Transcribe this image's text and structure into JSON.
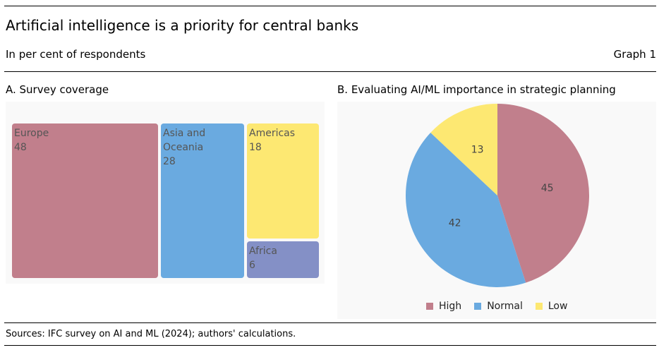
{
  "header": {
    "title": "Artificial intelligence is a priority for central banks",
    "subtitle": "In per cent of respondents",
    "graph_number": "Graph 1"
  },
  "footer": {
    "source": "Sources: IFC survey on AI and ML (2024); authors' calculations."
  },
  "chart_data": [
    {
      "type": "treemap",
      "title": "A. Survey coverage",
      "categories": [
        "Europe",
        "Asia and Oceania",
        "Americas",
        "Africa"
      ],
      "values": [
        48,
        28,
        18,
        6
      ],
      "colors": [
        "#c17f8c",
        "#6aaae0",
        "#fde872",
        "#8490c6"
      ]
    },
    {
      "type": "pie",
      "title": "B. Evaluating AI/ML importance in strategic planning",
      "categories": [
        "High",
        "Normal",
        "Low"
      ],
      "values": [
        45,
        42,
        13
      ],
      "colors": [
        "#c17f8c",
        "#6aaae0",
        "#fde872"
      ],
      "legend_position": "bottom"
    }
  ]
}
